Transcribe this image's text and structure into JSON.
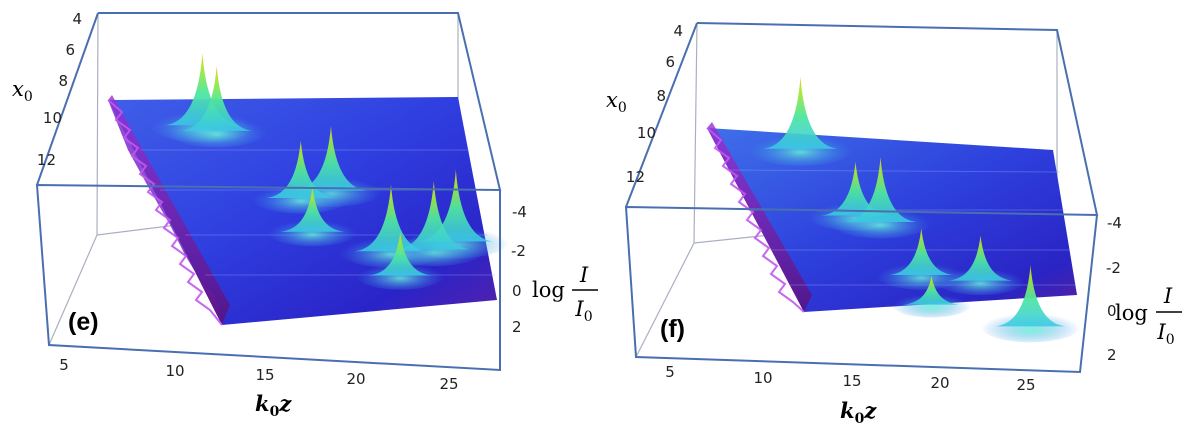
{
  "chart_data": [
    {
      "type": "surface3d",
      "panel_label": "(e)",
      "axes": {
        "x0": {
          "label": "x",
          "label_sub": "0",
          "ticks": [
            "4",
            "6",
            "8",
            "10",
            "12"
          ]
        },
        "z": {
          "label": "k",
          "label_sub": "0",
          "label_after": "z",
          "ticks": [
            "5",
            "10",
            "15",
            "20",
            "25"
          ]
        },
        "intensity": {
          "label_prefix": "log",
          "num": "I",
          "den": "I",
          "den_sub": "0",
          "ticks": [
            "-4",
            "-2",
            "0",
            "2"
          ]
        }
      },
      "peaks": [
        {
          "z": 10.0,
          "x0": 7.8,
          "height": 4.0
        },
        {
          "z": 10.8,
          "x0": 8.0,
          "height": 3.6
        },
        {
          "z": 15.0,
          "x0": 10.6,
          "height": 3.2
        },
        {
          "z": 17.0,
          "x0": 10.2,
          "height": 3.6
        },
        {
          "z": 15.2,
          "x0": 12.0,
          "height": 2.5
        },
        {
          "z": 19.8,
          "x0": 12.6,
          "height": 3.7
        },
        {
          "z": 22.5,
          "x0": 12.4,
          "height": 3.8
        },
        {
          "z": 24.0,
          "x0": 12.0,
          "height": 4.0
        },
        {
          "z": 20.0,
          "x0": 13.6,
          "height": 2.4
        }
      ]
    },
    {
      "type": "surface3d",
      "panel_label": "(f)",
      "axes": {
        "x0": {
          "label": "x",
          "label_sub": "0",
          "ticks": [
            "4",
            "6",
            "8",
            "10",
            "12"
          ]
        },
        "z": {
          "label": "k",
          "label_sub": "0",
          "label_after": "z",
          "ticks": [
            "5",
            "10",
            "15",
            "20",
            "25"
          ]
        },
        "intensity": {
          "label_prefix": "log",
          "num": "I",
          "den": "I",
          "den_sub": "0",
          "ticks": [
            "-4",
            "-2",
            "0",
            "2"
          ]
        }
      },
      "peaks": [
        {
          "z": 10.0,
          "x0": 7.0,
          "height": 4.0
        },
        {
          "z": 12.5,
          "x0": 10.0,
          "height": 3.0
        },
        {
          "z": 14.0,
          "x0": 10.2,
          "height": 3.6
        },
        {
          "z": 15.8,
          "x0": 12.6,
          "height": 2.6
        },
        {
          "z": 19.5,
          "x0": 12.6,
          "height": 2.5
        },
        {
          "z": 16.0,
          "x0": 14.0,
          "height": 1.6
        },
        {
          "z": 22.0,
          "x0": 14.6,
          "height": 3.4
        }
      ]
    }
  ]
}
